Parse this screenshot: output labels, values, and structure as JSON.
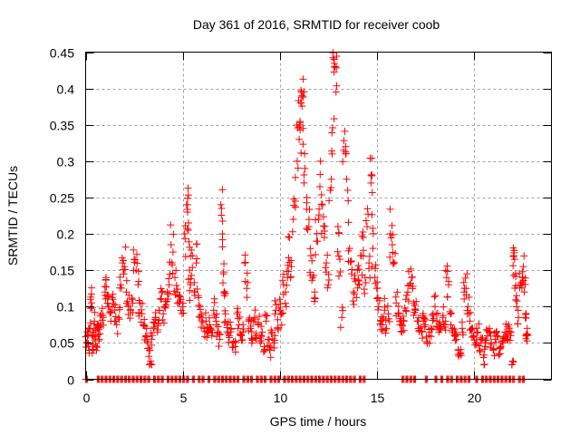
{
  "chart_data": {
    "type": "scatter",
    "title": "Day 361 of 2016, SRMTID for receiver coob",
    "xlabel": "GPS time / hours",
    "ylabel": "SRMTID / TECUs",
    "xlim": [
      0,
      24
    ],
    "ylim": [
      0,
      0.45
    ],
    "xticks": [
      0,
      5,
      10,
      15,
      20
    ],
    "xtick_labels": [
      "0",
      "5",
      "10",
      "15",
      "20"
    ],
    "yticks": [
      0,
      0.05,
      0.1,
      0.15,
      0.2,
      0.25,
      0.3,
      0.35,
      0.4,
      0.45
    ],
    "ytick_labels": [
      "0",
      "0.05",
      "0.1",
      "0.15",
      "0.2",
      "0.25",
      "0.3",
      "0.35",
      "0.4",
      "0.45"
    ],
    "grid": true,
    "legend": "none",
    "marker": "+",
    "color": "#ff0000",
    "series": [
      {
        "name": "SRMTID",
        "points": [
          [
            0.0,
            0.0
          ],
          [
            0.05,
            0.05
          ],
          [
            0.1,
            0.06
          ],
          [
            0.15,
            0.045
          ],
          [
            0.2,
            0.07
          ],
          [
            0.25,
            0.11
          ],
          [
            0.3,
            0.105
          ],
          [
            0.35,
            0.04
          ],
          [
            0.4,
            0.065
          ],
          [
            0.45,
            0.08
          ],
          [
            0.5,
            0.06
          ],
          [
            0.55,
            0.045
          ],
          [
            0.6,
            0.07
          ],
          [
            0.65,
            0.075
          ],
          [
            0.7,
            0.055
          ],
          [
            0.8,
            0.09
          ],
          [
            0.9,
            0.085
          ],
          [
            1.0,
            0.12
          ],
          [
            1.05,
            0.14
          ],
          [
            1.1,
            0.115
          ],
          [
            1.2,
            0.1
          ],
          [
            1.3,
            0.08
          ],
          [
            1.4,
            0.11
          ],
          [
            1.5,
            0.095
          ],
          [
            1.6,
            0.075
          ],
          [
            1.7,
            0.085
          ],
          [
            1.8,
            0.13
          ],
          [
            1.9,
            0.16
          ],
          [
            2.0,
            0.155
          ],
          [
            2.1,
            0.12
          ],
          [
            2.2,
            0.1
          ],
          [
            2.3,
            0.095
          ],
          [
            2.4,
            0.11
          ],
          [
            2.5,
            0.165
          ],
          [
            2.6,
            0.15
          ],
          [
            2.7,
            0.13
          ],
          [
            2.8,
            0.105
          ],
          [
            2.9,
            0.09
          ],
          [
            3.0,
            0.075
          ],
          [
            3.1,
            0.06
          ],
          [
            3.2,
            0.05
          ],
          [
            3.3,
            0.04
          ],
          [
            3.35,
            0.025
          ],
          [
            3.4,
            0.055
          ],
          [
            3.5,
            0.07
          ],
          [
            3.6,
            0.085
          ],
          [
            3.7,
            0.065
          ],
          [
            3.8,
            0.095
          ],
          [
            3.9,
            0.11
          ],
          [
            4.0,
            0.09
          ],
          [
            4.1,
            0.1
          ],
          [
            4.2,
            0.12
          ],
          [
            4.3,
            0.13
          ],
          [
            4.4,
            0.185
          ],
          [
            4.5,
            0.175
          ],
          [
            4.6,
            0.14
          ],
          [
            4.7,
            0.12
          ],
          [
            4.8,
            0.105
          ],
          [
            4.9,
            0.11
          ],
          [
            5.0,
            0.1
          ],
          [
            5.1,
            0.2
          ],
          [
            5.2,
            0.24
          ],
          [
            5.25,
            0.23
          ],
          [
            5.3,
            0.215
          ],
          [
            5.35,
            0.15
          ],
          [
            5.4,
            0.13
          ],
          [
            5.5,
            0.17
          ],
          [
            5.6,
            0.12
          ],
          [
            5.7,
            0.16
          ],
          [
            5.8,
            0.115
          ],
          [
            5.9,
            0.1
          ],
          [
            6.0,
            0.085
          ],
          [
            6.1,
            0.07
          ],
          [
            6.2,
            0.08
          ],
          [
            6.3,
            0.065
          ],
          [
            6.4,
            0.075
          ],
          [
            6.5,
            0.06
          ],
          [
            6.6,
            0.095
          ],
          [
            6.7,
            0.085
          ],
          [
            6.8,
            0.065
          ],
          [
            6.9,
            0.055
          ],
          [
            7.0,
            0.235
          ],
          [
            7.05,
            0.2
          ],
          [
            7.1,
            0.145
          ],
          [
            7.15,
            0.115
          ],
          [
            7.2,
            0.09
          ],
          [
            7.3,
            0.075
          ],
          [
            7.4,
            0.06
          ],
          [
            7.5,
            0.07
          ],
          [
            7.6,
            0.05
          ],
          [
            7.7,
            0.045
          ],
          [
            7.8,
            0.09
          ],
          [
            7.9,
            0.075
          ],
          [
            8.0,
            0.06
          ],
          [
            8.1,
            0.065
          ],
          [
            8.2,
            0.16
          ],
          [
            8.3,
            0.125
          ],
          [
            8.4,
            0.08
          ],
          [
            8.5,
            0.07
          ],
          [
            8.6,
            0.055
          ],
          [
            8.7,
            0.085
          ],
          [
            8.8,
            0.06
          ],
          [
            8.9,
            0.075
          ],
          [
            9.0,
            0.05
          ],
          [
            9.1,
            0.065
          ],
          [
            9.2,
            0.045
          ],
          [
            9.3,
            0.08
          ],
          [
            9.4,
            0.055
          ],
          [
            9.5,
            0.04
          ],
          [
            9.6,
            0.065
          ],
          [
            9.7,
            0.05
          ],
          [
            9.8,
            0.095
          ],
          [
            9.9,
            0.07
          ],
          [
            10.0,
            0.11
          ],
          [
            10.1,
            0.09
          ],
          [
            10.2,
            0.13
          ],
          [
            10.3,
            0.12
          ],
          [
            10.4,
            0.14
          ],
          [
            10.5,
            0.195
          ],
          [
            10.6,
            0.155
          ],
          [
            10.7,
            0.22
          ],
          [
            10.8,
            0.245
          ],
          [
            10.9,
            0.3
          ],
          [
            11.0,
            0.33
          ],
          [
            11.05,
            0.35
          ],
          [
            11.1,
            0.38
          ],
          [
            11.15,
            0.39
          ],
          [
            11.2,
            0.345
          ],
          [
            11.3,
            0.29
          ],
          [
            11.4,
            0.25
          ],
          [
            11.5,
            0.21
          ],
          [
            11.6,
            0.17
          ],
          [
            11.7,
            0.14
          ],
          [
            11.8,
            0.12
          ],
          [
            11.9,
            0.19
          ],
          [
            12.0,
            0.22
          ],
          [
            12.1,
            0.3
          ],
          [
            12.2,
            0.24
          ],
          [
            12.3,
            0.195
          ],
          [
            12.4,
            0.16
          ],
          [
            12.5,
            0.13
          ],
          [
            12.6,
            0.26
          ],
          [
            12.7,
            0.31
          ],
          [
            12.8,
            0.44
          ],
          [
            12.85,
            0.43
          ],
          [
            12.9,
            0.395
          ],
          [
            13.0,
            0.21
          ],
          [
            13.1,
            0.165
          ],
          [
            13.2,
            0.085
          ],
          [
            13.3,
            0.315
          ],
          [
            13.4,
            0.31
          ],
          [
            13.5,
            0.26
          ],
          [
            13.6,
            0.18
          ],
          [
            13.7,
            0.145
          ],
          [
            13.8,
            0.12
          ],
          [
            13.9,
            0.135
          ],
          [
            14.0,
            0.15
          ],
          [
            14.1,
            0.13
          ],
          [
            14.2,
            0.17
          ],
          [
            14.3,
            0.195
          ],
          [
            14.4,
            0.14
          ],
          [
            14.5,
            0.21
          ],
          [
            14.6,
            0.16
          ],
          [
            14.7,
            0.27
          ],
          [
            14.75,
            0.28
          ],
          [
            14.8,
            0.18
          ],
          [
            14.9,
            0.14
          ],
          [
            15.0,
            0.125
          ],
          [
            15.1,
            0.1
          ],
          [
            15.2,
            0.08
          ],
          [
            15.3,
            0.075
          ],
          [
            15.4,
            0.095
          ],
          [
            15.5,
            0.07
          ],
          [
            15.6,
            0.09
          ],
          [
            15.7,
            0.2
          ],
          [
            15.8,
            0.185
          ],
          [
            15.9,
            0.16
          ],
          [
            16.0,
            0.105
          ],
          [
            16.1,
            0.09
          ],
          [
            16.2,
            0.075
          ],
          [
            16.3,
            0.065
          ],
          [
            16.4,
            0.08
          ],
          [
            16.5,
            0.11
          ],
          [
            16.6,
            0.12
          ],
          [
            16.7,
            0.13
          ],
          [
            16.8,
            0.14
          ],
          [
            16.9,
            0.105
          ],
          [
            17.0,
            0.095
          ],
          [
            17.1,
            0.08
          ],
          [
            17.2,
            0.07
          ],
          [
            17.3,
            0.065
          ],
          [
            17.4,
            0.085
          ],
          [
            17.5,
            0.075
          ],
          [
            17.6,
            0.05
          ],
          [
            17.7,
            0.06
          ],
          [
            17.8,
            0.07
          ],
          [
            17.9,
            0.09
          ],
          [
            18.0,
            0.1
          ],
          [
            18.1,
            0.08
          ],
          [
            18.2,
            0.065
          ],
          [
            18.3,
            0.07
          ],
          [
            18.4,
            0.085
          ],
          [
            18.5,
            0.075
          ],
          [
            18.6,
            0.14
          ],
          [
            18.7,
            0.13
          ],
          [
            18.8,
            0.09
          ],
          [
            18.9,
            0.07
          ],
          [
            19.0,
            0.06
          ],
          [
            19.1,
            0.055
          ],
          [
            19.2,
            0.04
          ],
          [
            19.3,
            0.035
          ],
          [
            19.4,
            0.07
          ],
          [
            19.5,
            0.12
          ],
          [
            19.6,
            0.125
          ],
          [
            19.7,
            0.1
          ],
          [
            19.8,
            0.08
          ],
          [
            19.9,
            0.07
          ],
          [
            20.0,
            0.06
          ],
          [
            20.1,
            0.05
          ],
          [
            20.2,
            0.065
          ],
          [
            20.3,
            0.04
          ],
          [
            20.4,
            0.055
          ],
          [
            20.5,
            0.03
          ],
          [
            20.6,
            0.045
          ],
          [
            20.7,
            0.06
          ],
          [
            20.8,
            0.07
          ],
          [
            20.9,
            0.05
          ],
          [
            21.0,
            0.04
          ],
          [
            21.1,
            0.055
          ],
          [
            21.2,
            0.06
          ],
          [
            21.3,
            0.035
          ],
          [
            21.4,
            0.045
          ],
          [
            21.5,
            0.05
          ],
          [
            21.6,
            0.065
          ],
          [
            21.7,
            0.055
          ],
          [
            21.8,
            0.075
          ],
          [
            21.9,
            0.06
          ],
          [
            22.0,
            0.025
          ],
          [
            22.05,
            0.17
          ],
          [
            22.1,
            0.165
          ],
          [
            22.15,
            0.145
          ],
          [
            22.2,
            0.1
          ],
          [
            22.3,
            0.085
          ],
          [
            22.4,
            0.13
          ],
          [
            22.5,
            0.14
          ],
          [
            22.55,
            0.155
          ],
          [
            22.6,
            0.12
          ],
          [
            22.65,
            0.085
          ],
          [
            22.7,
            0.06
          ],
          [
            22.75,
            0.07
          ]
        ]
      }
    ],
    "zero_markers_hours": [
      0.0,
      0.6,
      0.8,
      1.0,
      1.2,
      1.4,
      1.6,
      1.8,
      2.0,
      2.2,
      2.4,
      2.6,
      2.8,
      3.0,
      3.2,
      3.5,
      3.7,
      3.9,
      4.2,
      4.4,
      4.6,
      4.8,
      5.0,
      5.2,
      5.5,
      5.8,
      6.0,
      6.3,
      6.6,
      6.8,
      7.0,
      7.2,
      7.4,
      7.6,
      7.8,
      8.1,
      8.3,
      8.5,
      8.8,
      9.0,
      9.2,
      9.5,
      9.7,
      9.9,
      10.2,
      10.4,
      10.6,
      10.8,
      11.0,
      11.2,
      11.4,
      11.6,
      11.8,
      12.0,
      12.2,
      12.4,
      12.6,
      12.8,
      13.0,
      13.2,
      13.4,
      13.6,
      13.8,
      14.1,
      14.3,
      16.3,
      16.5,
      16.7,
      16.9,
      17.5,
      18.0,
      18.3,
      18.6,
      18.8,
      19.1,
      19.3,
      19.5,
      19.7,
      20.1,
      20.4,
      20.6,
      20.8,
      21.0,
      21.2,
      21.4,
      21.6,
      21.8,
      22.0,
      22.3,
      22.5
    ]
  }
}
